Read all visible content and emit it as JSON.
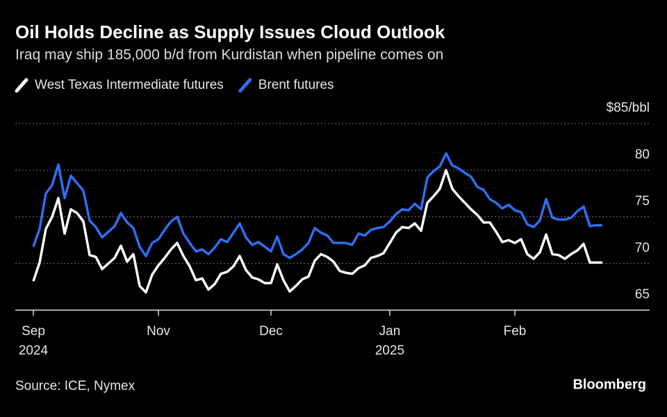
{
  "chart_data": {
    "type": "line",
    "title": "Oil Holds Decline as Supply Issues Cloud Outlook",
    "subtitle": "Iraq may ship 185,000 b/d from Kurdistan when pipeline comes on",
    "source": "Source: ICE, Nymex",
    "brand": "Bloomberg",
    "categories": [
      "Sep",
      null,
      null,
      null,
      null,
      null,
      null,
      null,
      null,
      null,
      null,
      null,
      null,
      null,
      null,
      null,
      null,
      null,
      null,
      null,
      "Nov",
      null,
      null,
      null,
      null,
      null,
      null,
      null,
      null,
      null,
      null,
      null,
      null,
      null,
      null,
      null,
      null,
      null,
      "Dec",
      null,
      null,
      null,
      null,
      null,
      null,
      null,
      null,
      null,
      null,
      null,
      null,
      null,
      null,
      null,
      null,
      null,
      null,
      "Jan",
      null,
      null,
      null,
      null,
      null,
      null,
      null,
      null,
      null,
      null,
      null,
      null,
      null,
      null,
      null,
      null,
      null,
      null,
      null,
      "Feb",
      null,
      null,
      null,
      null,
      null,
      null,
      null,
      null,
      null,
      null,
      null,
      null,
      null,
      null
    ],
    "category_years": [
      "2024",
      null,
      null,
      null,
      null,
      null,
      null,
      null,
      null,
      null,
      null,
      null,
      null,
      null,
      null,
      null,
      null,
      null,
      null,
      null,
      null,
      null,
      null,
      null,
      null,
      null,
      null,
      null,
      null,
      null,
      null,
      null,
      null,
      null,
      null,
      null,
      null,
      null,
      null,
      null,
      null,
      null,
      null,
      null,
      null,
      null,
      null,
      null,
      null,
      null,
      null,
      null,
      null,
      null,
      null,
      null,
      null,
      "2025",
      null,
      null,
      null,
      null,
      null,
      null,
      null,
      null,
      null,
      null,
      null,
      null,
      null,
      null,
      null,
      null,
      null,
      null,
      null,
      null,
      null,
      null,
      null,
      null,
      null,
      null,
      null,
      null,
      null,
      null,
      null,
      null,
      null,
      null
    ],
    "series": [
      {
        "name": "West Texas Intermediate futures",
        "color": "#ffffff",
        "values": [
          68.1,
          70.1,
          73.7,
          75.0,
          77.0,
          73.2,
          75.8,
          75.4,
          74.5,
          70.9,
          70.7,
          69.4,
          70.0,
          70.6,
          71.9,
          70.2,
          71.0,
          67.6,
          66.9,
          68.8,
          69.8,
          70.6,
          71.5,
          72.2,
          70.8,
          69.7,
          68.2,
          68.4,
          67.2,
          67.8,
          68.9,
          69.1,
          69.7,
          70.8,
          69.3,
          68.5,
          68.3,
          67.9,
          67.9,
          69.9,
          68.2,
          67.0,
          67.6,
          68.3,
          68.6,
          70.3,
          71.0,
          70.7,
          70.2,
          69.2,
          69.0,
          68.9,
          69.5,
          69.8,
          70.6,
          70.8,
          71.1,
          72.2,
          73.3,
          73.9,
          73.8,
          74.3,
          73.5,
          76.5,
          77.2,
          78.0,
          80.0,
          78.0,
          77.2,
          76.5,
          75.8,
          75.2,
          74.4,
          74.4,
          73.4,
          72.3,
          72.5,
          72.2,
          72.6,
          71.0,
          70.5,
          71.2,
          73.1,
          71.0,
          70.9,
          70.5,
          71.0,
          71.4,
          72.1,
          70.1,
          70.1,
          70.1
        ]
      },
      {
        "name": "Brent futures",
        "color": "#2d6ff0",
        "values": [
          71.8,
          73.7,
          77.5,
          78.4,
          80.6,
          77.0,
          79.4,
          78.6,
          77.8,
          74.6,
          73.9,
          72.8,
          73.4,
          74.0,
          75.4,
          74.4,
          73.8,
          71.8,
          70.8,
          72.2,
          72.6,
          73.6,
          74.5,
          75.0,
          73.2,
          72.2,
          71.3,
          71.5,
          71.0,
          71.7,
          72.6,
          72.3,
          73.3,
          74.3,
          72.8,
          72.0,
          72.3,
          71.8,
          71.3,
          72.9,
          71.0,
          70.6,
          71.0,
          71.5,
          72.2,
          73.8,
          73.3,
          73.0,
          72.2,
          72.2,
          72.2,
          72.0,
          73.2,
          73.0,
          73.6,
          73.8,
          73.9,
          74.5,
          75.3,
          75.8,
          75.7,
          76.4,
          75.8,
          79.2,
          79.9,
          80.4,
          81.8,
          80.5,
          80.2,
          79.7,
          79.3,
          78.2,
          77.9,
          76.9,
          76.5,
          75.9,
          76.3,
          75.7,
          75.5,
          74.2,
          73.9,
          74.6,
          76.9,
          74.9,
          74.7,
          74.7,
          74.9,
          75.6,
          76.1,
          74.0,
          74.1,
          74.1
        ]
      }
    ],
    "ylim": [
      65,
      85
    ],
    "yticks": [
      65,
      70,
      75,
      80,
      {
        "value": 85,
        "label": "$85/bbl"
      }
    ],
    "grid": true
  }
}
